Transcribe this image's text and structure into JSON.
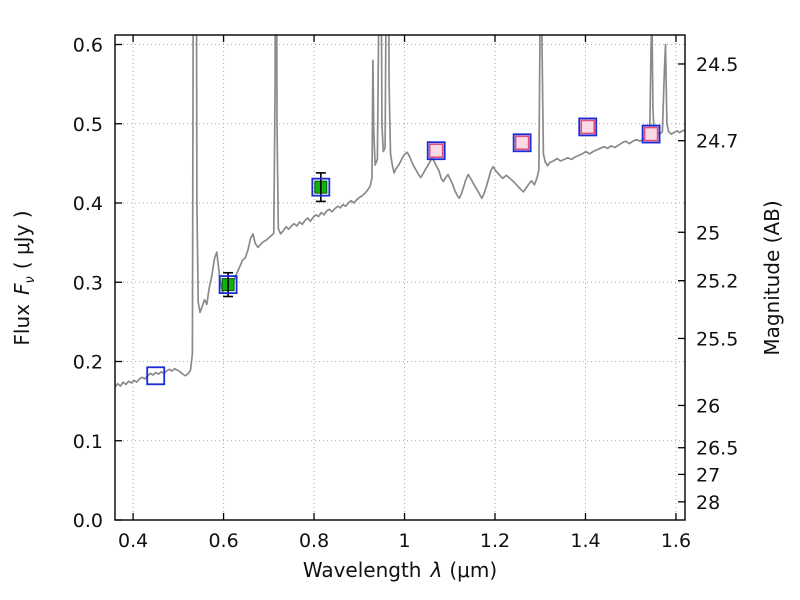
{
  "figure": {
    "background": "#ffffff"
  },
  "axes": {
    "x_label_prefix": "Wavelength",
    "x_label_symbol": "λ",
    "x_label_suffix": "(μm)",
    "y_left_prefix": "Flux",
    "y_left_symbol": "F",
    "y_left_sub": "ν",
    "y_left_suffix": "( μJy )",
    "y_right_label": "Magnitude (AB)"
  },
  "chart_data": {
    "type": "line",
    "title": "",
    "xlabel": "Wavelength λ (μm)",
    "ylabel_left": "Flux Fν ( μJy )",
    "ylabel_right": "Magnitude (AB)",
    "xlim": [
      0.36,
      1.62
    ],
    "ylim": [
      0,
      0.612
    ],
    "grid": true,
    "x_ticks": [
      0.4,
      0.6,
      0.8,
      1.0,
      1.2,
      1.4,
      1.6
    ],
    "x_tick_labels": [
      "0.4",
      "0.6",
      "0.8",
      "1",
      "1.2",
      "1.4",
      "1.6"
    ],
    "y_ticks": [
      0.0,
      0.1,
      0.2,
      0.3,
      0.4,
      0.5,
      0.6
    ],
    "y_tick_labels": [
      "0.0",
      "0.1",
      "0.2",
      "0.3",
      "0.4",
      "0.5",
      "0.6"
    ],
    "right_axis_magnitudes": [
      "24.5",
      "24.7",
      "25",
      "25.2",
      "25.5",
      "26",
      "26.5",
      "27",
      "28"
    ],
    "colors": {
      "grid": "#aaaaaa",
      "border": "#000000",
      "error_bar": "#000000"
    },
    "spectrum": {
      "name": "model galaxy spectrum",
      "color": "#8a8a8a",
      "points": [
        [
          0.36,
          0.168
        ],
        [
          0.366,
          0.172
        ],
        [
          0.372,
          0.169
        ],
        [
          0.378,
          0.174
        ],
        [
          0.384,
          0.171
        ],
        [
          0.39,
          0.175
        ],
        [
          0.396,
          0.173
        ],
        [
          0.402,
          0.176
        ],
        [
          0.408,
          0.174
        ],
        [
          0.414,
          0.178
        ],
        [
          0.42,
          0.18
        ],
        [
          0.426,
          0.178
        ],
        [
          0.432,
          0.182
        ],
        [
          0.438,
          0.185
        ],
        [
          0.444,
          0.183
        ],
        [
          0.45,
          0.186
        ],
        [
          0.456,
          0.184
        ],
        [
          0.462,
          0.187
        ],
        [
          0.468,
          0.185
        ],
        [
          0.474,
          0.188
        ],
        [
          0.48,
          0.19
        ],
        [
          0.486,
          0.188
        ],
        [
          0.492,
          0.191
        ],
        [
          0.498,
          0.189
        ],
        [
          0.504,
          0.187
        ],
        [
          0.51,
          0.184
        ],
        [
          0.516,
          0.182
        ],
        [
          0.522,
          0.185
        ],
        [
          0.527,
          0.189
        ],
        [
          0.531,
          0.21
        ],
        [
          0.533,
          0.7
        ],
        [
          0.535,
          1.05
        ],
        [
          0.537,
          0.72
        ],
        [
          0.539,
          0.95
        ],
        [
          0.541,
          0.4
        ],
        [
          0.544,
          0.275
        ],
        [
          0.548,
          0.262
        ],
        [
          0.553,
          0.27
        ],
        [
          0.558,
          0.278
        ],
        [
          0.563,
          0.272
        ],
        [
          0.568,
          0.292
        ],
        [
          0.574,
          0.308
        ],
        [
          0.58,
          0.33
        ],
        [
          0.585,
          0.338
        ],
        [
          0.589,
          0.318
        ],
        [
          0.593,
          0.3
        ],
        [
          0.598,
          0.287
        ],
        [
          0.603,
          0.293
        ],
        [
          0.608,
          0.298
        ],
        [
          0.613,
          0.303
        ],
        [
          0.618,
          0.296
        ],
        [
          0.624,
          0.304
        ],
        [
          0.63,
          0.312
        ],
        [
          0.636,
          0.32
        ],
        [
          0.642,
          0.328
        ],
        [
          0.648,
          0.331
        ],
        [
          0.654,
          0.341
        ],
        [
          0.66,
          0.356
        ],
        [
          0.665,
          0.361
        ],
        [
          0.67,
          0.349
        ],
        [
          0.676,
          0.344
        ],
        [
          0.682,
          0.348
        ],
        [
          0.688,
          0.351
        ],
        [
          0.694,
          0.353
        ],
        [
          0.7,
          0.356
        ],
        [
          0.706,
          0.359
        ],
        [
          0.711,
          0.362
        ],
        [
          0.714,
          0.55
        ],
        [
          0.716,
          1.05
        ],
        [
          0.718,
          0.5
        ],
        [
          0.721,
          0.368
        ],
        [
          0.726,
          0.361
        ],
        [
          0.732,
          0.365
        ],
        [
          0.738,
          0.37
        ],
        [
          0.744,
          0.367
        ],
        [
          0.75,
          0.371
        ],
        [
          0.756,
          0.374
        ],
        [
          0.762,
          0.371
        ],
        [
          0.768,
          0.376
        ],
        [
          0.774,
          0.373
        ],
        [
          0.78,
          0.378
        ],
        [
          0.786,
          0.381
        ],
        [
          0.792,
          0.377
        ],
        [
          0.798,
          0.382
        ],
        [
          0.804,
          0.385
        ],
        [
          0.81,
          0.383
        ],
        [
          0.816,
          0.388
        ],
        [
          0.822,
          0.385
        ],
        [
          0.828,
          0.39
        ],
        [
          0.834,
          0.392
        ],
        [
          0.84,
          0.389
        ],
        [
          0.846,
          0.393
        ],
        [
          0.852,
          0.396
        ],
        [
          0.858,
          0.394
        ],
        [
          0.864,
          0.398
        ],
        [
          0.87,
          0.396
        ],
        [
          0.876,
          0.4
        ],
        [
          0.882,
          0.403
        ],
        [
          0.888,
          0.4
        ],
        [
          0.894,
          0.404
        ],
        [
          0.9,
          0.407
        ],
        [
          0.906,
          0.409
        ],
        [
          0.912,
          0.412
        ],
        [
          0.918,
          0.416
        ],
        [
          0.924,
          0.421
        ],
        [
          0.928,
          0.432
        ],
        [
          0.93,
          0.58
        ],
        [
          0.932,
          0.49
        ],
        [
          0.935,
          0.448
        ],
        [
          0.94,
          0.455
        ],
        [
          0.944,
          0.7
        ],
        [
          0.946,
          1.1
        ],
        [
          0.948,
          0.8
        ],
        [
          0.95,
          0.5
        ],
        [
          0.953,
          0.465
        ],
        [
          0.957,
          0.47
        ],
        [
          0.96,
          0.72
        ],
        [
          0.963,
          1.02
        ],
        [
          0.966,
          0.55
        ],
        [
          0.969,
          0.462
        ],
        [
          0.973,
          0.448
        ],
        [
          0.977,
          0.438
        ],
        [
          0.981,
          0.443
        ],
        [
          0.986,
          0.447
        ],
        [
          0.991,
          0.452
        ],
        [
          0.996,
          0.458
        ],
        [
          1.001,
          0.462
        ],
        [
          1.006,
          0.464
        ],
        [
          1.011,
          0.459
        ],
        [
          1.016,
          0.452
        ],
        [
          1.021,
          0.446
        ],
        [
          1.026,
          0.441
        ],
        [
          1.031,
          0.436
        ],
        [
          1.036,
          0.432
        ],
        [
          1.041,
          0.437
        ],
        [
          1.046,
          0.442
        ],
        [
          1.051,
          0.447
        ],
        [
          1.056,
          0.452
        ],
        [
          1.061,
          0.457
        ],
        [
          1.066,
          0.452
        ],
        [
          1.071,
          0.446
        ],
        [
          1.076,
          0.441
        ],
        [
          1.081,
          0.431
        ],
        [
          1.086,
          0.427
        ],
        [
          1.091,
          0.432
        ],
        [
          1.096,
          0.436
        ],
        [
          1.101,
          0.43
        ],
        [
          1.106,
          0.424
        ],
        [
          1.111,
          0.416
        ],
        [
          1.116,
          0.41
        ],
        [
          1.121,
          0.406
        ],
        [
          1.126,
          0.412
        ],
        [
          1.131,
          0.421
        ],
        [
          1.136,
          0.43
        ],
        [
          1.141,
          0.436
        ],
        [
          1.146,
          0.431
        ],
        [
          1.151,
          0.426
        ],
        [
          1.156,
          0.421
        ],
        [
          1.161,
          0.416
        ],
        [
          1.166,
          0.411
        ],
        [
          1.171,
          0.406
        ],
        [
          1.176,
          0.412
        ],
        [
          1.181,
          0.421
        ],
        [
          1.186,
          0.431
        ],
        [
          1.191,
          0.441
        ],
        [
          1.196,
          0.446
        ],
        [
          1.201,
          0.441
        ],
        [
          1.209,
          0.436
        ],
        [
          1.217,
          0.431
        ],
        [
          1.225,
          0.435
        ],
        [
          1.233,
          0.431
        ],
        [
          1.241,
          0.427
        ],
        [
          1.249,
          0.422
        ],
        [
          1.257,
          0.417
        ],
        [
          1.263,
          0.414
        ],
        [
          1.269,
          0.419
        ],
        [
          1.275,
          0.424
        ],
        [
          1.281,
          0.428
        ],
        [
          1.287,
          0.423
        ],
        [
          1.293,
          0.432
        ],
        [
          1.297,
          0.442
        ],
        [
          1.3,
          0.65
        ],
        [
          1.302,
          1.05
        ],
        [
          1.304,
          0.6
        ],
        [
          1.307,
          0.462
        ],
        [
          1.311,
          0.452
        ],
        [
          1.316,
          0.447
        ],
        [
          1.321,
          0.451
        ],
        [
          1.329,
          0.453
        ],
        [
          1.337,
          0.456
        ],
        [
          1.345,
          0.453
        ],
        [
          1.353,
          0.455
        ],
        [
          1.361,
          0.457
        ],
        [
          1.369,
          0.455
        ],
        [
          1.377,
          0.458
        ],
        [
          1.385,
          0.46
        ],
        [
          1.393,
          0.462
        ],
        [
          1.401,
          0.465
        ],
        [
          1.409,
          0.462
        ],
        [
          1.417,
          0.465
        ],
        [
          1.425,
          0.467
        ],
        [
          1.433,
          0.469
        ],
        [
          1.441,
          0.471
        ],
        [
          1.449,
          0.469
        ],
        [
          1.457,
          0.472
        ],
        [
          1.465,
          0.47
        ],
        [
          1.473,
          0.473
        ],
        [
          1.481,
          0.476
        ],
        [
          1.489,
          0.478
        ],
        [
          1.497,
          0.475
        ],
        [
          1.505,
          0.478
        ],
        [
          1.513,
          0.48
        ],
        [
          1.521,
          0.478
        ],
        [
          1.529,
          0.481
        ],
        [
          1.537,
          0.483
        ],
        [
          1.542,
          0.486
        ],
        [
          1.545,
          0.6
        ],
        [
          1.547,
          0.63
        ],
        [
          1.549,
          0.52
        ],
        [
          1.552,
          0.487
        ],
        [
          1.558,
          0.49
        ],
        [
          1.564,
          0.487
        ],
        [
          1.57,
          0.49
        ],
        [
          1.574,
          0.56
        ],
        [
          1.577,
          0.6
        ],
        [
          1.58,
          0.5
        ],
        [
          1.584,
          0.49
        ],
        [
          1.59,
          0.487
        ],
        [
          1.596,
          0.489
        ],
        [
          1.602,
          0.491
        ],
        [
          1.608,
          0.489
        ],
        [
          1.614,
          0.491
        ],
        [
          1.62,
          0.492
        ]
      ]
    },
    "photometry": {
      "model": {
        "name": "model photometry (open blue squares)",
        "color": "#1a2bd9",
        "points": [
          [
            0.45,
            0.182
          ],
          [
            0.61,
            0.297
          ],
          [
            0.815,
            0.42
          ],
          [
            1.07,
            0.466
          ],
          [
            1.26,
            0.476
          ],
          [
            1.405,
            0.496
          ],
          [
            1.545,
            0.487
          ]
        ]
      },
      "observed_optical": {
        "name": "observed flux optical (green squares, x, flux, error)",
        "fill": "#0db40d",
        "edge": "#055505",
        "points": [
          [
            0.61,
            0.297,
            0.015
          ],
          [
            0.815,
            0.42,
            0.018
          ]
        ]
      },
      "observed_ir": {
        "name": "observed flux infrared (pink squares)",
        "fill": "#fadae4",
        "edge": "#e0507c",
        "points": [
          [
            1.07,
            0.466
          ],
          [
            1.26,
            0.476
          ],
          [
            1.405,
            0.496
          ],
          [
            1.545,
            0.487
          ]
        ]
      }
    }
  }
}
